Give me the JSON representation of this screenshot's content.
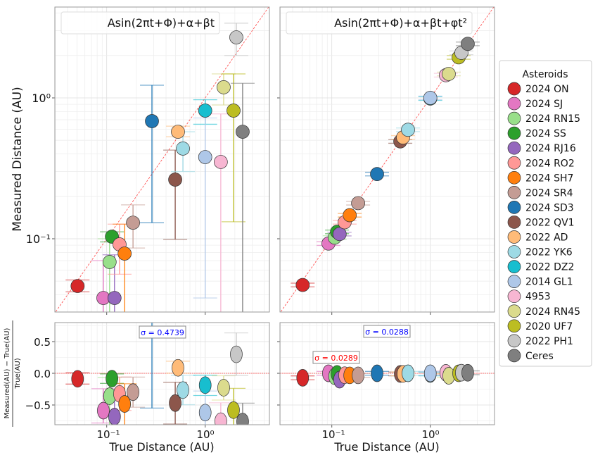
{
  "chart_data": [
    {
      "type": "scatter",
      "panel": "top-left",
      "legend_title": "Asin(2πt+Φ)+α+βt",
      "xlabel": "",
      "ylabel": "Measured Distance (AU)",
      "xscale": "log",
      "yscale": "log",
      "xlim": [
        0.026,
        4.7
      ],
      "ylim": [
        0.03,
        4.4
      ],
      "xticks": [
        "10⁻¹",
        "10⁰"
      ],
      "yticks": [
        {
          "value": 1,
          "label": "10⁰"
        },
        {
          "value": 0.1,
          "label": "10⁻¹"
        }
      ],
      "reference_line": "y = x",
      "grid": true,
      "series_key": "asteroids",
      "measured_key": "m1",
      "error_key": "m1_err"
    },
    {
      "type": "scatter",
      "panel": "top-right",
      "legend_title": "Asin(2πt+Φ)+α+βt+φt²",
      "xscale": "log",
      "yscale": "log",
      "xlim": [
        0.026,
        4.7
      ],
      "ylim": [
        0.03,
        4.4
      ],
      "reference_line": "y = x",
      "grid": true,
      "series_key": "asteroids",
      "measured_key": "m2"
    },
    {
      "type": "scatter",
      "panel": "bottom-left",
      "xlabel": "True Distance (AU)",
      "ylabel_numerator": "Measured(AU) − True(AU)",
      "ylabel_denominator": "True(AU)",
      "xscale": "log",
      "xlim": [
        0.026,
        4.7
      ],
      "ylim": [
        -0.8,
        0.8
      ],
      "xticks": [
        "10⁻¹",
        "10⁰"
      ],
      "yticks": [
        {
          "value": 0.5,
          "label": "0.5"
        },
        {
          "value": 0.0,
          "label": "0.0"
        },
        {
          "value": -0.5,
          "label": "−0.5"
        }
      ],
      "annotations": [
        {
          "text": "σ = 0.4739",
          "color": "#0000ff"
        }
      ],
      "grid": true
    },
    {
      "type": "scatter",
      "panel": "bottom-right",
      "xlabel": "True Distance (AU)",
      "xscale": "log",
      "xlim": [
        0.026,
        4.7
      ],
      "ylim": [
        -0.8,
        0.8
      ],
      "xticks": [
        "10⁻¹",
        "10⁰"
      ],
      "annotations": [
        {
          "text": "σ = 0.0288",
          "color": "#0000ff"
        },
        {
          "text": "σ = 0.0289",
          "color": "#ff0000"
        }
      ],
      "grid": true
    }
  ],
  "legend": {
    "title": "Asteroids",
    "placement": "right"
  },
  "asteroids": [
    {
      "name": "2024 ON",
      "color": "#d62728",
      "true": 0.0506,
      "m1": 0.0462,
      "m1_err": [
        0.042,
        0.051
      ],
      "m2": 0.047
    },
    {
      "name": "2024 SJ",
      "color": "#e377c2",
      "true": 0.0925,
      "m1": 0.038,
      "m1_err": [
        0.02,
        0.07
      ],
      "m2": 0.0925
    },
    {
      "name": "2024 RN15",
      "color": "#98df8a",
      "true": 0.107,
      "m1": 0.0684,
      "m1_err": [
        0.02,
        0.1
      ],
      "m2": 0.102
    },
    {
      "name": "2024 SS",
      "color": "#2ca02c",
      "true": 0.113,
      "m1": 0.1035,
      "m1_err": [
        0.095,
        0.112
      ],
      "m2": 0.112
    },
    {
      "name": "2024 RJ16",
      "color": "#9467bd",
      "true": 0.12,
      "m1": 0.038,
      "m1_err": [
        0.02,
        0.077
      ],
      "m2": 0.108
    },
    {
      "name": "2024 RO2",
      "color": "#ff9896",
      "true": 0.135,
      "m1": 0.0912,
      "m1_err": [
        0.056,
        0.127
      ],
      "m2": 0.131
    },
    {
      "name": "2024 SH7",
      "color": "#ff7f0e",
      "true": 0.152,
      "m1": 0.0785,
      "m1_err": [
        0.02,
        0.127
      ],
      "m2": 0.147
    },
    {
      "name": "2024 SR4",
      "color": "#c49c94",
      "true": 0.185,
      "m1": 0.13,
      "m1_err": [
        0.086,
        0.174
      ],
      "m2": 0.179
    },
    {
      "name": "2024 SD3",
      "color": "#1f77b4",
      "true": 0.288,
      "m1": 0.684,
      "m1_err": [
        0.13,
        1.23
      ],
      "m2": 0.288
    },
    {
      "name": "2022 QV1",
      "color": "#8c564b",
      "true": 0.496,
      "m1": 0.263,
      "m1_err": [
        0.099,
        0.426
      ],
      "m2": 0.491
    },
    {
      "name": "2022 AD",
      "color": "#ffbb78",
      "true": 0.529,
      "m1": 0.575,
      "m1_err": [
        0.53,
        0.63
      ],
      "m2": 0.524
    },
    {
      "name": "2022 YK6",
      "color": "#9edae5",
      "true": 0.594,
      "m1": 0.437,
      "m1_err": [
        0.3,
        0.575
      ],
      "m2": 0.594
    },
    {
      "name": "2022 DZ2",
      "color": "#17becf",
      "true": 1.0,
      "m1": 0.813,
      "m1_err": [
        0.65,
        0.97
      ],
      "m2": 0.99
    },
    {
      "name": "2014 GL1",
      "color": "#aec7e8",
      "true": 1.0,
      "m1": 0.38,
      "m1_err": [
        0.038,
        0.72
      ],
      "m2": 1.0
    },
    {
      "name": "4953",
      "color": "#f7b6d2",
      "true": 1.44,
      "m1": 0.351,
      "m1_err": [
        0.02,
        0.77
      ],
      "m2": 1.45
    },
    {
      "name": "2024 RN45",
      "color": "#dbdb8d",
      "true": 1.54,
      "m1": 1.19,
      "m1_err": [
        0.89,
        1.48
      ],
      "m2": 1.48
    },
    {
      "name": "2020 UF7",
      "color": "#bcbd22",
      "true": 1.94,
      "m1": 0.813,
      "m1_err": [
        0.132,
        1.48
      ],
      "m2": 1.94
    },
    {
      "name": "2022 PH1",
      "color": "#c7c7c7",
      "true": 2.07,
      "m1": 2.69,
      "m1_err": [
        2.0,
        3.39
      ],
      "m2": 2.09
    },
    {
      "name": "Ceres",
      "color": "#7f7f7f",
      "true": 2.4,
      "m1": 0.575,
      "m1_err": [
        0.02,
        1.27
      ],
      "m2": 2.42
    }
  ]
}
